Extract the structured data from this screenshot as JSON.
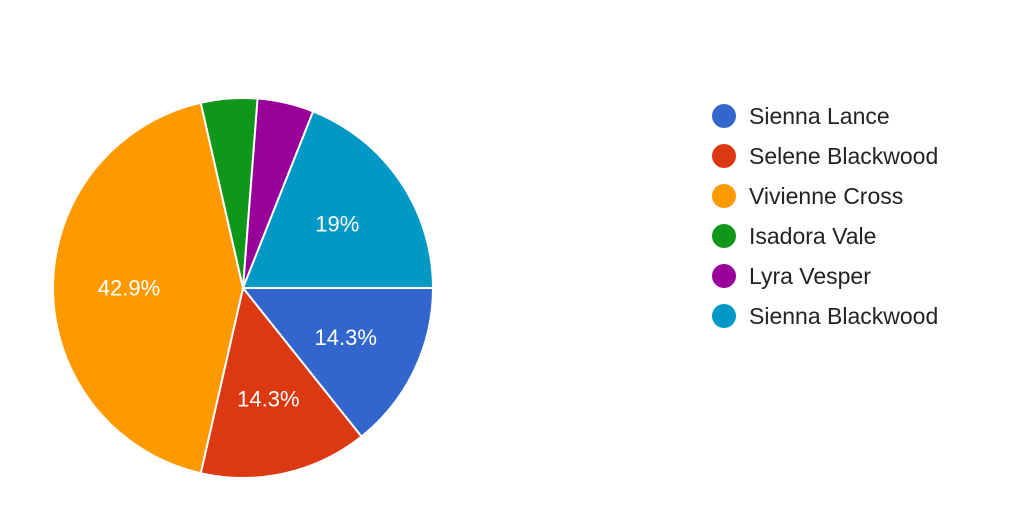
{
  "chart_data": {
    "type": "pie",
    "series": [
      {
        "name": "Sienna Lance",
        "value": 14.3,
        "label": "14.3%",
        "color": "#3366cc"
      },
      {
        "name": "Selene Blackwood",
        "value": 14.3,
        "label": "14.3%",
        "color": "#dc3912"
      },
      {
        "name": "Vivienne Cross",
        "value": 42.9,
        "label": "42.9%",
        "color": "#ff9900"
      },
      {
        "name": "Isadora Vale",
        "value": 4.8,
        "label": "",
        "color": "#109618"
      },
      {
        "name": "Lyra Vesper",
        "value": 4.8,
        "label": "",
        "color": "#990099"
      },
      {
        "name": "Sienna Blackwood",
        "value": 19,
        "label": "19%",
        "color": "#0099c6"
      }
    ],
    "start_direction": "right (3 o'clock)",
    "direction": "clockwise",
    "legend_position": "right"
  }
}
